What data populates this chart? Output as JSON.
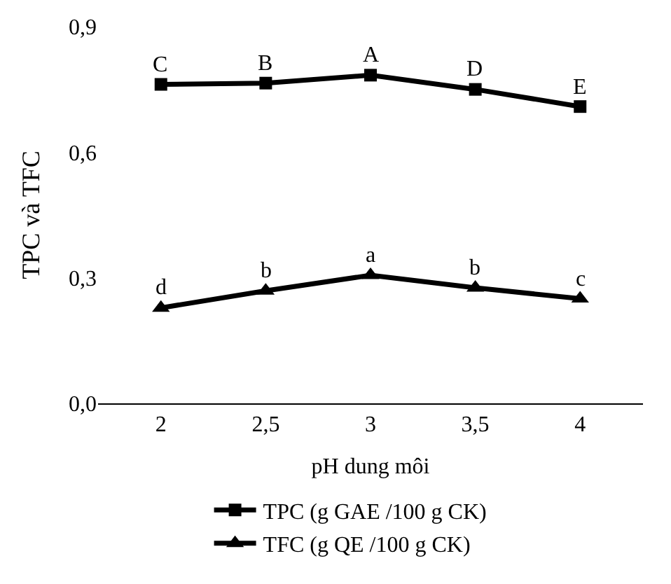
{
  "chart_data": {
    "type": "line",
    "xlabel": "pH dung môi",
    "ylabel": "TPC và TFC",
    "categories": [
      "2",
      "2,5",
      "3",
      "3,5",
      "4"
    ],
    "series": [
      {
        "name": "TPC (g GAE /100 g CK)",
        "color": "#000000",
        "marker": "square",
        "values": [
          0.762,
          0.765,
          0.784,
          0.75,
          0.709
        ]
      },
      {
        "name": "TFC (g QE /100 g CK)",
        "color": "#000000",
        "marker": "triangle",
        "values": [
          0.228,
          0.269,
          0.306,
          0.276,
          0.25
        ]
      }
    ],
    "ylim": [
      0,
      0.9
    ],
    "yticks": [
      {
        "value": 0,
        "label": "0,0"
      },
      {
        "value": 0.3,
        "label": "0,3"
      },
      {
        "value": 0.6,
        "label": "0,6"
      },
      {
        "value": 0.9,
        "label": "0,9"
      }
    ],
    "legend": "bottom",
    "line_style": "solid",
    "annotations": [
      {
        "text": "C",
        "x": "2",
        "y": 0.762
      },
      {
        "text": "B",
        "x": "2,5",
        "y": 0.765
      },
      {
        "text": "A",
        "x": "3",
        "y": 0.784
      },
      {
        "text": "D",
        "x": "3,5",
        "y": 0.75
      },
      {
        "text": "E",
        "x": "4",
        "y": 0.709
      },
      {
        "text": "d",
        "x": "2",
        "y": 0.228
      },
      {
        "text": "b",
        "x": "2,5",
        "y": 0.269
      },
      {
        "text": "a",
        "x": "3",
        "y": 0.306
      },
      {
        "text": "b",
        "x": "3,5",
        "y": 0.276
      },
      {
        "text": "c",
        "x": "4",
        "y": 0.25
      }
    ]
  }
}
